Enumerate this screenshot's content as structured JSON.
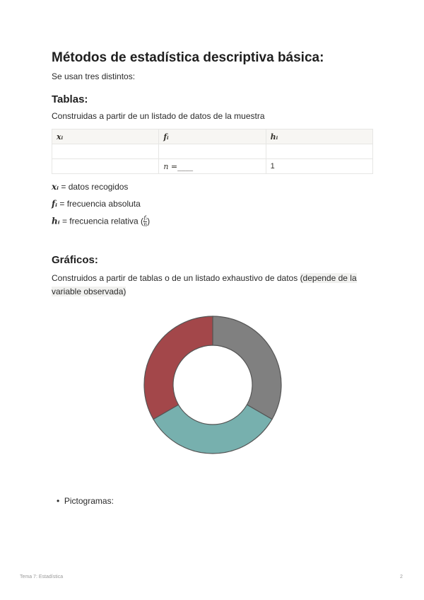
{
  "title": "Métodos de estadística descriptiva básica:",
  "intro": "Se usan tres distintos:",
  "tablas": {
    "heading": "Tablas:",
    "description": "Construidas a partir de un listado de datos de la muestra",
    "table": {
      "headers": [
        "xᵢ",
        "fᵢ",
        "hᵢ"
      ],
      "rows": [
        [
          "",
          "",
          ""
        ],
        [
          "",
          "n =____",
          "1"
        ]
      ]
    },
    "definitions": [
      {
        "symbol": "xᵢ",
        "text": " = datos recogidos"
      },
      {
        "symbol": "fᵢ",
        "text": " = frecuencia absoluta"
      },
      {
        "symbol": "hᵢ",
        "text": " = frecuencia relativa (",
        "frac_num": "fᵢ",
        "frac_den": "n",
        "close": ")"
      }
    ]
  },
  "graficos": {
    "heading": "Gráficos:",
    "description": "Construidos a partir de tablas o de un listado exhaustivo de datos ",
    "highlight": "(depende de la variable observada)",
    "bullets": [
      "Pictogramas:"
    ]
  },
  "chart_data": {
    "type": "pie",
    "donut": true,
    "values": [
      1,
      1,
      1
    ],
    "colors": [
      "#808080",
      "#77b0ae",
      "#a3474a"
    ]
  },
  "footer": {
    "left": "Tema 7: Estadística",
    "page": "2"
  }
}
